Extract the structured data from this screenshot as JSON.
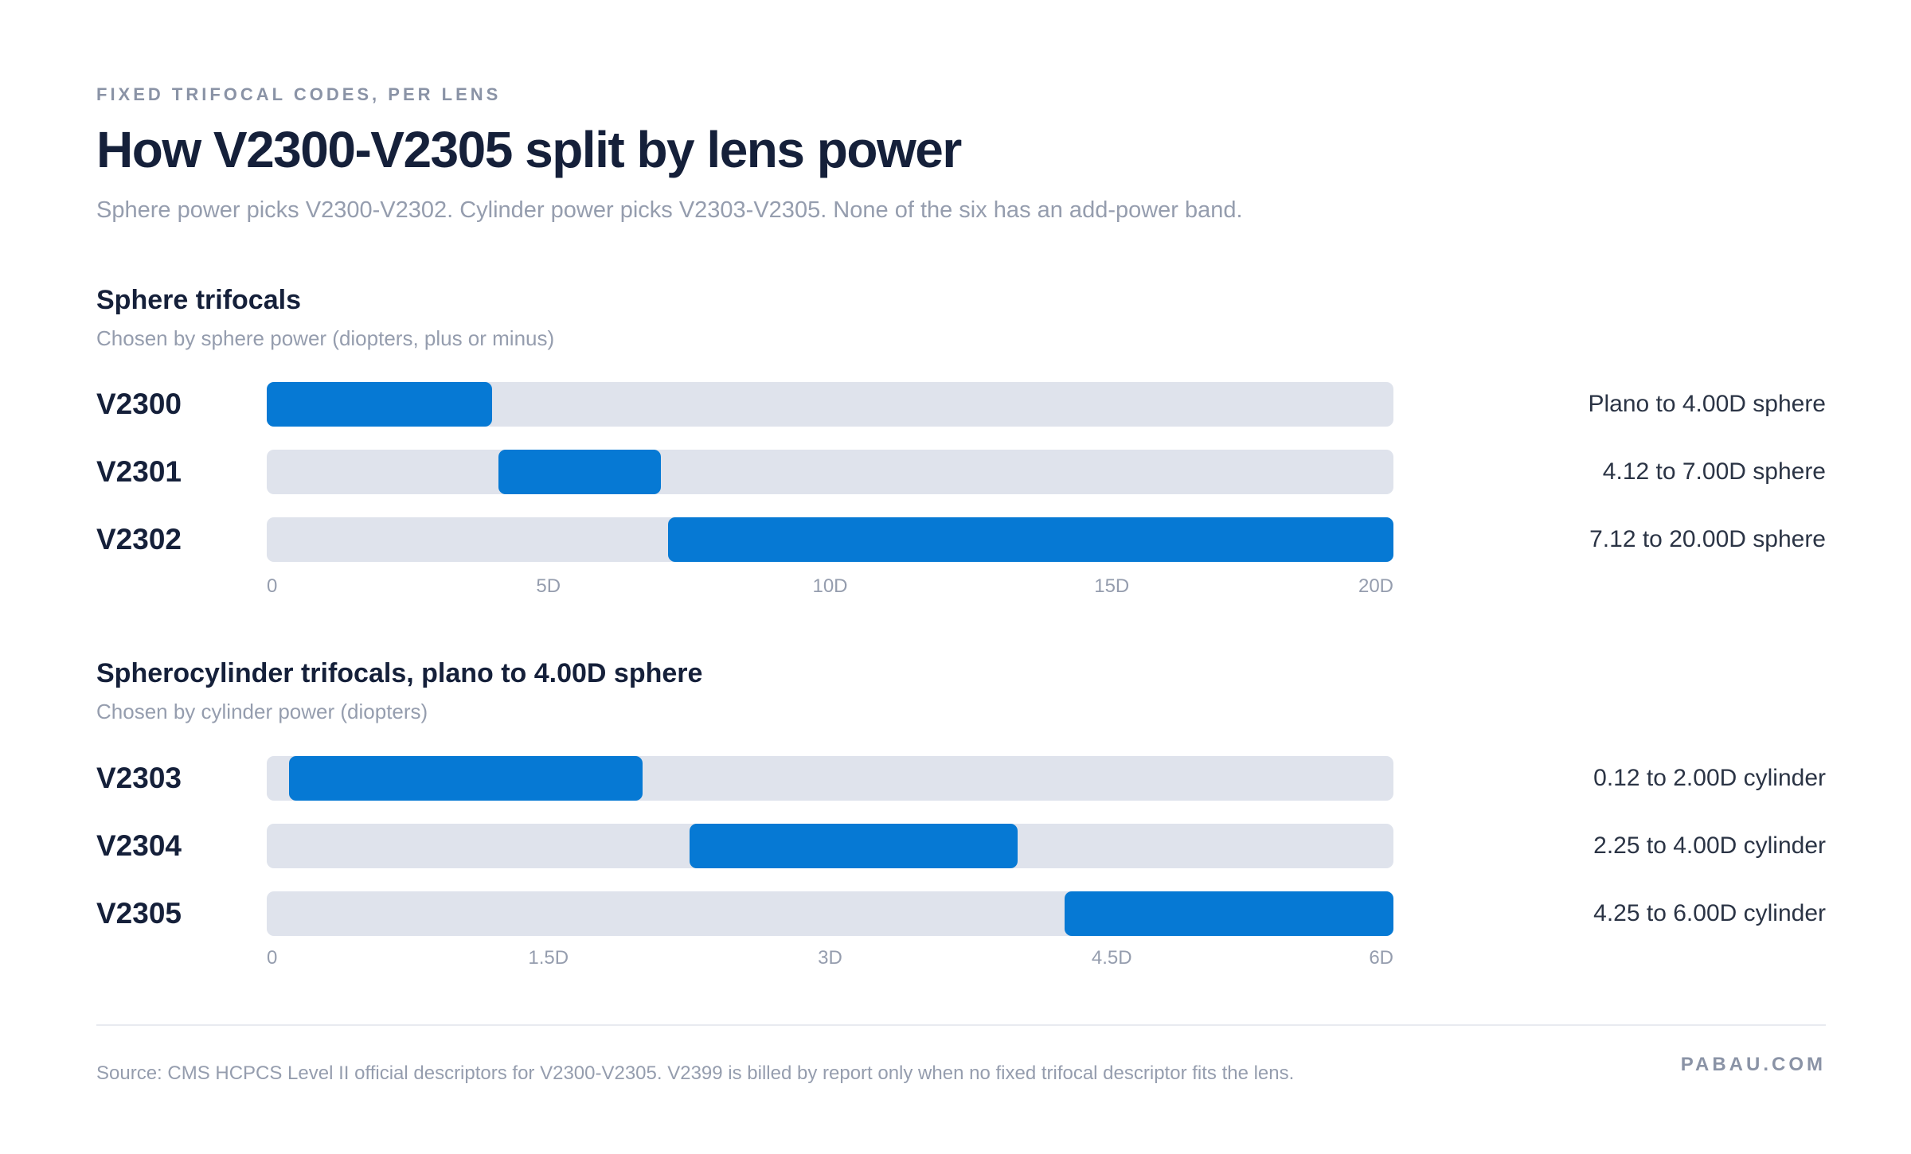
{
  "header": {
    "eyebrow": "FIXED TRIFOCAL CODES, PER LENS",
    "title": "How V2300-V2305 split by lens power",
    "subtitle": "Sphere power picks V2300-V2302. Cylinder power picks V2303-V2305. None of the six has an add-power band."
  },
  "colors": {
    "bar": "#0679d4",
    "track": "#dfe3ec",
    "text": "#15203a",
    "muted": "#959dae"
  },
  "chart_data": [
    {
      "type": "bar",
      "orientation": "horizontal-range",
      "title": "Sphere trifocals",
      "subtitle": "Chosen by sphere power (diopters, plus or minus)",
      "xlim": [
        0,
        20
      ],
      "ticks": [
        "0",
        "5D",
        "10D",
        "15D",
        "20D"
      ],
      "tick_values": [
        0,
        5,
        10,
        15,
        20
      ],
      "categories": [
        "V2300",
        "V2301",
        "V2302"
      ],
      "ranges": [
        [
          0,
          4.0
        ],
        [
          4.12,
          7.0
        ],
        [
          7.12,
          20.0
        ]
      ],
      "range_labels": [
        "Plano to 4.00D sphere",
        "4.12 to 7.00D sphere",
        "7.12 to 20.00D sphere"
      ],
      "grid": false
    },
    {
      "type": "bar",
      "orientation": "horizontal-range",
      "title": "Spherocylinder trifocals, plano to 4.00D sphere",
      "subtitle": "Chosen by cylinder power (diopters)",
      "xlim": [
        0,
        6
      ],
      "ticks": [
        "0",
        "1.5D",
        "3D",
        "4.5D",
        "6D"
      ],
      "tick_values": [
        0,
        1.5,
        3,
        4.5,
        6
      ],
      "categories": [
        "V2303",
        "V2304",
        "V2305"
      ],
      "ranges": [
        [
          0.12,
          2.0
        ],
        [
          2.25,
          4.0
        ],
        [
          4.25,
          6.0
        ]
      ],
      "range_labels": [
        "0.12 to 2.00D cylinder",
        "2.25 to 4.00D cylinder",
        "4.25 to 6.00D cylinder"
      ],
      "grid": false
    }
  ],
  "footer": {
    "source": "Source: CMS HCPCS Level II official descriptors for V2300-V2305. V2399 is billed by report only when no fixed trifocal descriptor fits the lens.",
    "brand": "PABAU.COM"
  }
}
